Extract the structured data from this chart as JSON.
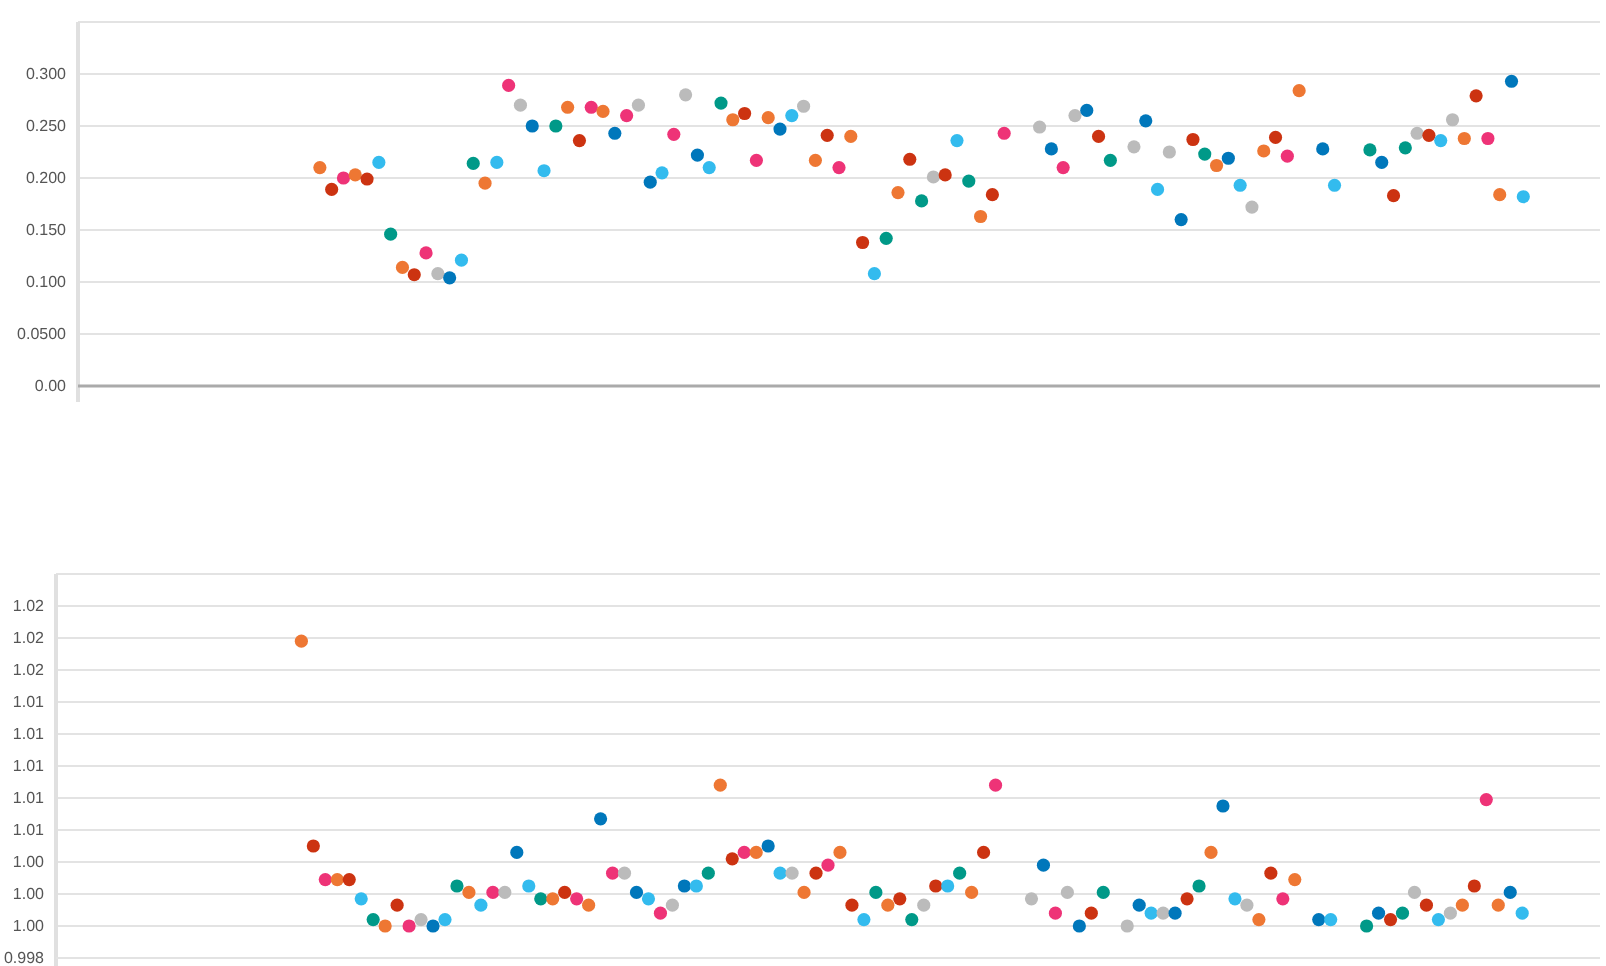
{
  "chart_data": [
    {
      "type": "scatter",
      "categories": [
        null,
        null,
        null,
        null,
        null,
        null,
        null,
        null,
        null,
        null,
        null,
        null,
        null,
        null,
        null,
        null,
        null,
        null,
        null,
        null,
        null,
        null,
        null,
        null,
        null,
        null,
        null,
        null,
        null,
        null,
        null,
        null,
        null,
        null,
        null,
        null,
        null,
        null,
        null,
        null,
        null,
        null,
        null,
        null,
        null,
        null,
        null,
        null,
        null,
        null,
        null,
        null,
        null,
        null,
        null,
        null,
        null,
        null,
        null,
        null,
        null,
        null,
        null,
        null,
        null,
        null,
        null,
        null,
        null,
        null,
        null,
        null,
        null,
        null,
        null,
        null,
        null,
        null,
        null,
        null,
        null,
        null,
        null,
        null,
        null,
        null,
        null,
        null,
        null,
        null,
        null,
        null,
        null,
        null,
        null,
        null,
        null,
        null,
        null,
        null,
        null,
        null,
        null,
        null,
        null,
        null,
        null,
        null,
        null,
        null,
        null,
        null,
        null,
        null,
        null,
        null,
        null,
        null,
        null,
        null,
        null,
        null,
        null,
        null,
        null,
        null,
        null,
        null,
        null
      ],
      "values": [
        null,
        null,
        null,
        null,
        null,
        null,
        null,
        null,
        null,
        null,
        null,
        null,
        null,
        null,
        null,
        null,
        null,
        null,
        null,
        null,
        0.21,
        0.189,
        0.2,
        0.203,
        0.199,
        0.215,
        0.146,
        0.114,
        0.107,
        0.128,
        0.108,
        0.104,
        0.121,
        0.214,
        0.195,
        0.215,
        0.289,
        0.27,
        0.25,
        0.207,
        0.25,
        0.268,
        0.236,
        0.268,
        0.264,
        0.243,
        0.26,
        0.27,
        0.196,
        0.205,
        0.242,
        0.28,
        0.222,
        0.21,
        0.272,
        0.256,
        0.262,
        0.217,
        0.258,
        0.247,
        0.26,
        0.269,
        0.217,
        0.241,
        0.21,
        0.24,
        0.138,
        0.108,
        0.142,
        0.186,
        0.218,
        0.178,
        0.201,
        0.203,
        0.236,
        0.197,
        0.163,
        0.184,
        0.243,
        null,
        null,
        0.249,
        0.228,
        0.21,
        0.26,
        0.265,
        0.24,
        0.217,
        null,
        0.23,
        0.255,
        0.189,
        0.225,
        0.16,
        0.237,
        0.223,
        0.212,
        0.219,
        0.193,
        0.172,
        0.226,
        0.239,
        0.221,
        0.284,
        null,
        0.228,
        0.193,
        null,
        null,
        0.227,
        0.215,
        0.183,
        0.229,
        0.243,
        0.241,
        0.236,
        0.256,
        0.238,
        0.279,
        0.238,
        0.184,
        0.293,
        0.182,
        null,
        null,
        null,
        null,
        null,
        null
      ],
      "colors": [
        null,
        null,
        null,
        null,
        null,
        null,
        null,
        null,
        null,
        null,
        null,
        null,
        null,
        null,
        null,
        null,
        null,
        null,
        null,
        null,
        "#ee7733",
        "#cc3311",
        "#ee3377",
        "#ee7733",
        "#cc3311",
        "#33bbee",
        "#009988",
        "#ee7733",
        "#cc3311",
        "#ee3377",
        "#bbbbbb",
        "#0077bb",
        "#33bbee",
        "#009988",
        "#ee7733",
        "#33bbee",
        "#ee3377",
        "#bbbbbb",
        "#0077bb",
        "#33bbee",
        "#009988",
        "#ee7733",
        "#cc3311",
        "#ee3377",
        "#ee7733",
        "#0077bb",
        "#ee3377",
        "#bbbbbb",
        "#0077bb",
        "#33bbee",
        "#ee3377",
        "#bbbbbb",
        "#0077bb",
        "#33bbee",
        "#009988",
        "#ee7733",
        "#cc3311",
        "#ee3377",
        "#ee7733",
        "#0077bb",
        "#33bbee",
        "#bbbbbb",
        "#ee7733",
        "#cc3311",
        "#ee3377",
        "#ee7733",
        "#cc3311",
        "#33bbee",
        "#009988",
        "#ee7733",
        "#cc3311",
        "#009988",
        "#bbbbbb",
        "#cc3311",
        "#33bbee",
        "#009988",
        "#ee7733",
        "#cc3311",
        "#ee3377",
        null,
        null,
        "#bbbbbb",
        "#0077bb",
        "#ee3377",
        "#bbbbbb",
        "#0077bb",
        "#cc3311",
        "#009988",
        null,
        "#bbbbbb",
        "#0077bb",
        "#33bbee",
        "#bbbbbb",
        "#0077bb",
        "#cc3311",
        "#009988",
        "#ee7733",
        "#0077bb",
        "#33bbee",
        "#bbbbbb",
        "#ee7733",
        "#cc3311",
        "#ee3377",
        "#ee7733",
        null,
        "#0077bb",
        "#33bbee",
        null,
        null,
        "#009988",
        "#0077bb",
        "#cc3311",
        "#009988",
        "#bbbbbb",
        "#cc3311",
        "#33bbee",
        "#bbbbbb",
        "#ee7733",
        "#cc3311",
        "#ee3377",
        "#ee7733",
        "#0077bb",
        "#33bbee",
        null,
        null,
        null,
        null,
        null,
        null
      ],
      "ylim": [
        0,
        0.35
      ],
      "yticks": [
        {
          "value": 0,
          "label": "0.00"
        },
        {
          "value": 0.05,
          "label": "0.0500"
        },
        {
          "value": 0.1,
          "label": "0.100"
        },
        {
          "value": 0.15,
          "label": "0.150"
        },
        {
          "value": 0.2,
          "label": "0.200"
        },
        {
          "value": 0.25,
          "label": "0.250"
        },
        {
          "value": 0.3,
          "label": "0.300"
        }
      ],
      "grid": "y",
      "marker": "circle"
    },
    {
      "type": "scatter",
      "categories": [
        null,
        null,
        null,
        null,
        null,
        null,
        null,
        null,
        null,
        null,
        null,
        null,
        null,
        null,
        null,
        null,
        null,
        null,
        null,
        null,
        null,
        null,
        null,
        null,
        null,
        null,
        null,
        null,
        null,
        null,
        null,
        null,
        null,
        null,
        null,
        null,
        null,
        null,
        null,
        null,
        null,
        null,
        null,
        null,
        null,
        null,
        null,
        null,
        null,
        null,
        null,
        null,
        null,
        null,
        null,
        null,
        null,
        null,
        null,
        null,
        null,
        null,
        null,
        null,
        null,
        null,
        null,
        null,
        null,
        null,
        null,
        null,
        null,
        null,
        null,
        null,
        null,
        null,
        null,
        null,
        null,
        null,
        null,
        null,
        null,
        null,
        null,
        null,
        null,
        null,
        null,
        null,
        null,
        null,
        null,
        null,
        null,
        null,
        null,
        null,
        null,
        null,
        null,
        null,
        null,
        null,
        null,
        null,
        null,
        null,
        null,
        null,
        null,
        null,
        null,
        null,
        null,
        null,
        null,
        null,
        null,
        null,
        null,
        null,
        null,
        null,
        null,
        null,
        null
      ],
      "values": [
        null,
        null,
        null,
        null,
        null,
        null,
        null,
        null,
        null,
        null,
        null,
        null,
        null,
        null,
        null,
        null,
        null,
        null,
        null,
        null,
        1.0178,
        1.005,
        1.0029,
        1.0029,
        1.0029,
        1.0017,
        1.0004,
        1.0,
        1.0013,
        1.0,
        1.0004,
        1.0,
        1.0004,
        1.0025,
        1.0021,
        1.0013,
        1.0021,
        1.0021,
        1.0046,
        1.0025,
        1.0017,
        1.0017,
        1.0021,
        1.0017,
        1.0013,
        1.0067,
        1.0033,
        1.0033,
        1.0021,
        1.0017,
        1.0008,
        1.0013,
        1.0025,
        1.0025,
        1.0033,
        1.0088,
        1.0042,
        1.0046,
        1.0046,
        1.005,
        1.0033,
        1.0033,
        1.0021,
        1.0033,
        1.0038,
        1.0046,
        1.0013,
        1.0004,
        1.0021,
        1.0013,
        1.0017,
        1.0004,
        1.0013,
        1.0025,
        1.0025,
        1.0033,
        1.0021,
        1.0046,
        1.0088,
        null,
        null,
        1.0017,
        1.0038,
        1.0008,
        1.0021,
        1.0,
        1.0008,
        1.0021,
        null,
        1.0,
        1.0013,
        1.0008,
        1.0008,
        1.0008,
        1.0017,
        1.0025,
        1.0046,
        1.0075,
        1.0017,
        1.0013,
        1.0004,
        1.0033,
        1.0017,
        1.0029,
        null,
        1.0004,
        1.0004,
        null,
        null,
        1.0,
        1.0008,
        1.0004,
        1.0008,
        1.0021,
        1.0013,
        1.0004,
        1.0008,
        1.0013,
        1.0025,
        1.0079,
        1.0013,
        1.0021,
        1.0008,
        null,
        null,
        null,
        null,
        null,
        null
      ],
      "colors": [
        null,
        null,
        null,
        null,
        null,
        null,
        null,
        null,
        null,
        null,
        null,
        null,
        null,
        null,
        null,
        null,
        null,
        null,
        null,
        null,
        "#ee7733",
        "#cc3311",
        "#ee3377",
        "#ee7733",
        "#cc3311",
        "#33bbee",
        "#009988",
        "#ee7733",
        "#cc3311",
        "#ee3377",
        "#bbbbbb",
        "#0077bb",
        "#33bbee",
        "#009988",
        "#ee7733",
        "#33bbee",
        "#ee3377",
        "#bbbbbb",
        "#0077bb",
        "#33bbee",
        "#009988",
        "#ee7733",
        "#cc3311",
        "#ee3377",
        "#ee7733",
        "#0077bb",
        "#ee3377",
        "#bbbbbb",
        "#0077bb",
        "#33bbee",
        "#ee3377",
        "#bbbbbb",
        "#0077bb",
        "#33bbee",
        "#009988",
        "#ee7733",
        "#cc3311",
        "#ee3377",
        "#ee7733",
        "#0077bb",
        "#33bbee",
        "#bbbbbb",
        "#ee7733",
        "#cc3311",
        "#ee3377",
        "#ee7733",
        "#cc3311",
        "#33bbee",
        "#009988",
        "#ee7733",
        "#cc3311",
        "#009988",
        "#bbbbbb",
        "#cc3311",
        "#33bbee",
        "#009988",
        "#ee7733",
        "#cc3311",
        "#ee3377",
        null,
        null,
        "#bbbbbb",
        "#0077bb",
        "#ee3377",
        "#bbbbbb",
        "#0077bb",
        "#cc3311",
        "#009988",
        null,
        "#bbbbbb",
        "#0077bb",
        "#33bbee",
        "#bbbbbb",
        "#0077bb",
        "#cc3311",
        "#009988",
        "#ee7733",
        "#0077bb",
        "#33bbee",
        "#bbbbbb",
        "#ee7733",
        "#cc3311",
        "#ee3377",
        "#ee7733",
        null,
        "#0077bb",
        "#33bbee",
        null,
        null,
        "#009988",
        "#0077bb",
        "#cc3311",
        "#009988",
        "#bbbbbb",
        "#cc3311",
        "#33bbee",
        "#bbbbbb",
        "#ee7733",
        "#cc3311",
        "#ee3377",
        "#ee7733",
        "#0077bb",
        "#33bbee",
        null,
        null,
        null,
        null,
        null,
        null
      ],
      "ylim": [
        0.998,
        1.022
      ],
      "yticks": [
        {
          "value": 0.998,
          "label": "0.998"
        },
        {
          "value": 1.0,
          "label": "1.00"
        },
        {
          "value": 1.002,
          "label": "1.00"
        },
        {
          "value": 1.004,
          "label": "1.00"
        },
        {
          "value": 1.006,
          "label": "1.01"
        },
        {
          "value": 1.008,
          "label": "1.01"
        },
        {
          "value": 1.01,
          "label": "1.01"
        },
        {
          "value": 1.012,
          "label": "1.01"
        },
        {
          "value": 1.014,
          "label": "1.01"
        },
        {
          "value": 1.016,
          "label": "1.02"
        },
        {
          "value": 1.018,
          "label": "1.02"
        },
        {
          "value": 1.02,
          "label": "1.02"
        }
      ],
      "grid": "y",
      "marker": "circle"
    }
  ]
}
